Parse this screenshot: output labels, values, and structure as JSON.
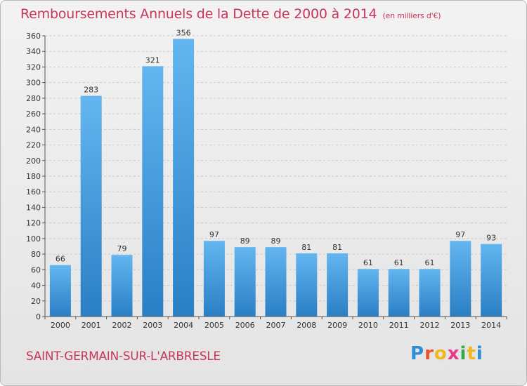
{
  "title": "Remboursements Annuels de la Dette de 2000 à 2014",
  "unit": "(en milliers d'€)",
  "commune": "SAINT-GERMAIN-SUR-L'ARBRESLE",
  "logo": {
    "letters": [
      "P",
      "r",
      "o",
      "x",
      "i",
      "t",
      "i"
    ],
    "colors": [
      "#2a8fd6",
      "#e8552a",
      "#f0b81a",
      "#e83a8a",
      "#35a84a",
      "#f0b81a",
      "#2a8fd6"
    ]
  },
  "colors": {
    "bar_top": "#63b6f0",
    "bar_bottom": "#2a7ec4",
    "title": "#c8365a"
  },
  "chart_data": {
    "type": "bar",
    "categories": [
      "2000",
      "2001",
      "2002",
      "2003",
      "2004",
      "2005",
      "2006",
      "2007",
      "2008",
      "2009",
      "2010",
      "2011",
      "2012",
      "2013",
      "2014"
    ],
    "values": [
      66,
      283,
      79,
      321,
      356,
      97,
      89,
      89,
      81,
      81,
      61,
      61,
      61,
      97,
      93
    ],
    "ylim": [
      0,
      360
    ],
    "yticks": [
      0,
      20,
      40,
      60,
      80,
      100,
      120,
      140,
      160,
      180,
      200,
      220,
      240,
      260,
      280,
      300,
      320,
      340,
      360
    ],
    "grid": true
  }
}
